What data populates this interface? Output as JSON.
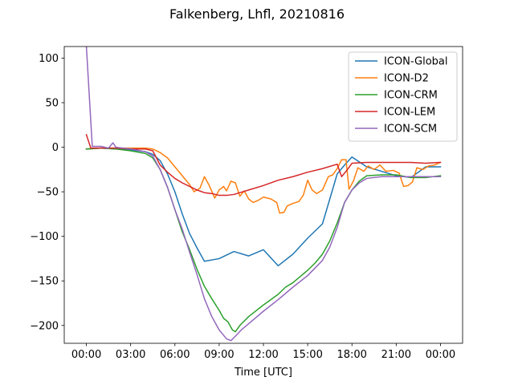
{
  "chart_data": {
    "type": "line",
    "title": "Falkenberg, Lhfl, 20210816",
    "xlabel": "Time [UTC]",
    "ylabel": "",
    "x_unit": "hours",
    "xlim": [
      -1.5,
      25.5
    ],
    "ylim": [
      -220,
      113
    ],
    "xticks": [
      {
        "value": 0,
        "label": "00:00"
      },
      {
        "value": 3,
        "label": "03:00"
      },
      {
        "value": 6,
        "label": "06:00"
      },
      {
        "value": 9,
        "label": "09:00"
      },
      {
        "value": 12,
        "label": "12:00"
      },
      {
        "value": 15,
        "label": "15:00"
      },
      {
        "value": 18,
        "label": "18:00"
      },
      {
        "value": 21,
        "label": "21:00"
      },
      {
        "value": 24,
        "label": "00:00"
      }
    ],
    "yticks": [
      {
        "value": 100,
        "label": "100"
      },
      {
        "value": 50,
        "label": "50"
      },
      {
        "value": 0,
        "label": "0"
      },
      {
        "value": -50,
        "label": "−50"
      },
      {
        "value": -100,
        "label": "−100"
      },
      {
        "value": -150,
        "label": "−150"
      },
      {
        "value": -200,
        "label": "−200"
      }
    ],
    "grid": false,
    "legend": "top-right",
    "series": [
      {
        "name": "ICON-Global",
        "color": "#1f77b4",
        "points": [
          [
            0,
            -2
          ],
          [
            1,
            -1
          ],
          [
            2,
            -2
          ],
          [
            3,
            -3
          ],
          [
            4,
            -5
          ],
          [
            4.5,
            -8
          ],
          [
            5,
            -15
          ],
          [
            5.5,
            -30
          ],
          [
            6,
            -50
          ],
          [
            6.5,
            -75
          ],
          [
            7,
            -97
          ],
          [
            7.5,
            -113
          ],
          [
            8,
            -128
          ],
          [
            9,
            -125
          ],
          [
            10,
            -117
          ],
          [
            11,
            -122
          ],
          [
            12,
            -115
          ],
          [
            13,
            -133
          ],
          [
            14,
            -120
          ],
          [
            15,
            -102
          ],
          [
            16,
            -86
          ],
          [
            16.5,
            -58
          ],
          [
            17,
            -30
          ],
          [
            17.5,
            -20
          ],
          [
            18,
            -11
          ],
          [
            19,
            -22
          ],
          [
            20,
            -27
          ],
          [
            21,
            -32
          ],
          [
            22,
            -34
          ],
          [
            23,
            -22
          ],
          [
            24,
            -22
          ]
        ]
      },
      {
        "name": "ICON-D2",
        "color": "#ff7f0e",
        "points": [
          [
            0,
            -2
          ],
          [
            1,
            -1
          ],
          [
            2,
            -1
          ],
          [
            3,
            -1
          ],
          [
            4,
            -1
          ],
          [
            4.5,
            -2
          ],
          [
            5,
            -6
          ],
          [
            5.5,
            -12
          ],
          [
            6,
            -22
          ],
          [
            6.5,
            -32
          ],
          [
            7,
            -42
          ],
          [
            7.3,
            -50
          ],
          [
            7.7,
            -46
          ],
          [
            8,
            -33
          ],
          [
            8.3,
            -42
          ],
          [
            8.7,
            -57
          ],
          [
            9,
            -48
          ],
          [
            9.3,
            -44
          ],
          [
            9.5,
            -49
          ],
          [
            9.8,
            -38
          ],
          [
            10.1,
            -40
          ],
          [
            10.4,
            -55
          ],
          [
            10.7,
            -49
          ],
          [
            11,
            -58
          ],
          [
            11.3,
            -62
          ],
          [
            11.6,
            -60
          ],
          [
            12,
            -56
          ],
          [
            12.5,
            -58
          ],
          [
            12.9,
            -62
          ],
          [
            13.1,
            -74
          ],
          [
            13.4,
            -73
          ],
          [
            13.6,
            -66
          ],
          [
            14,
            -63
          ],
          [
            14.4,
            -61
          ],
          [
            14.7,
            -54
          ],
          [
            15,
            -37
          ],
          [
            15.3,
            -48
          ],
          [
            15.6,
            -52
          ],
          [
            16,
            -48
          ],
          [
            16.4,
            -33
          ],
          [
            16.7,
            -31
          ],
          [
            17,
            -24
          ],
          [
            17.3,
            -14
          ],
          [
            17.6,
            -14
          ],
          [
            17.8,
            -47
          ],
          [
            18.1,
            -38
          ],
          [
            18.4,
            -23
          ],
          [
            18.8,
            -27
          ],
          [
            19.1,
            -21
          ],
          [
            19.5,
            -25
          ],
          [
            19.9,
            -20
          ],
          [
            20.3,
            -27
          ],
          [
            20.8,
            -26
          ],
          [
            21.2,
            -29
          ],
          [
            21.5,
            -44
          ],
          [
            21.8,
            -43
          ],
          [
            22.1,
            -39
          ],
          [
            22.4,
            -23
          ],
          [
            22.8,
            -25
          ],
          [
            23.2,
            -21
          ],
          [
            23.6,
            -20
          ],
          [
            24,
            -17
          ]
        ]
      },
      {
        "name": "ICON-CRM",
        "color": "#2ca02c",
        "points": [
          [
            0,
            -2
          ],
          [
            1,
            -1
          ],
          [
            2,
            -2
          ],
          [
            3,
            -4
          ],
          [
            4,
            -7
          ],
          [
            4.5,
            -12
          ],
          [
            5,
            -25
          ],
          [
            5.5,
            -45
          ],
          [
            6,
            -70
          ],
          [
            6.5,
            -95
          ],
          [
            7,
            -115
          ],
          [
            7.5,
            -137
          ],
          [
            8,
            -156
          ],
          [
            8.5,
            -170
          ],
          [
            9,
            -183
          ],
          [
            9.3,
            -192
          ],
          [
            9.6,
            -196
          ],
          [
            9.9,
            -205
          ],
          [
            10.1,
            -207
          ],
          [
            10.4,
            -200
          ],
          [
            11,
            -190
          ],
          [
            12,
            -177
          ],
          [
            13,
            -165
          ],
          [
            13.5,
            -157
          ],
          [
            14,
            -152
          ],
          [
            14.5,
            -145
          ],
          [
            15,
            -138
          ],
          [
            15.5,
            -130
          ],
          [
            16,
            -120
          ],
          [
            16.5,
            -105
          ],
          [
            17,
            -85
          ],
          [
            17.5,
            -62
          ],
          [
            18,
            -48
          ],
          [
            18.5,
            -38
          ],
          [
            19,
            -32
          ],
          [
            20,
            -31
          ],
          [
            21,
            -31
          ],
          [
            22,
            -34
          ],
          [
            23,
            -34
          ],
          [
            24,
            -32
          ]
        ]
      },
      {
        "name": "ICON-LEM",
        "color": "#d62728",
        "points": [
          [
            0,
            14
          ],
          [
            0.3,
            -1
          ],
          [
            1,
            -1
          ],
          [
            2,
            -1
          ],
          [
            3,
            -2
          ],
          [
            4,
            -2
          ],
          [
            4.5,
            -4
          ],
          [
            5,
            -20
          ],
          [
            5.5,
            -28
          ],
          [
            6,
            -35
          ],
          [
            6.5,
            -40
          ],
          [
            7,
            -44
          ],
          [
            7.5,
            -48
          ],
          [
            8,
            -51
          ],
          [
            8.5,
            -52
          ],
          [
            9,
            -54
          ],
          [
            9.5,
            -54
          ],
          [
            10,
            -53
          ],
          [
            11,
            -48
          ],
          [
            12,
            -43
          ],
          [
            13,
            -37
          ],
          [
            14,
            -33
          ],
          [
            15,
            -28
          ],
          [
            16,
            -24
          ],
          [
            17,
            -19
          ],
          [
            17.3,
            -33
          ],
          [
            17.7,
            -25
          ],
          [
            18,
            -18
          ],
          [
            19,
            -17
          ],
          [
            20,
            -17
          ],
          [
            21,
            -17
          ],
          [
            22,
            -17
          ],
          [
            23,
            -18
          ],
          [
            24,
            -17
          ]
        ]
      },
      {
        "name": "ICON-SCM",
        "color": "#9467bd",
        "points": [
          [
            0,
            113
          ],
          [
            0.4,
            1
          ],
          [
            1,
            1
          ],
          [
            1.5,
            -1
          ],
          [
            1.8,
            5
          ],
          [
            2,
            0
          ],
          [
            3,
            -2
          ],
          [
            4,
            -5
          ],
          [
            4.5,
            -10
          ],
          [
            5,
            -25
          ],
          [
            5.5,
            -45
          ],
          [
            6,
            -70
          ],
          [
            6.5,
            -92
          ],
          [
            7,
            -118
          ],
          [
            7.5,
            -143
          ],
          [
            8,
            -170
          ],
          [
            8.5,
            -190
          ],
          [
            9,
            -205
          ],
          [
            9.5,
            -215
          ],
          [
            9.8,
            -217
          ],
          [
            10.1,
            -212
          ],
          [
            10.5,
            -205
          ],
          [
            11,
            -198
          ],
          [
            12,
            -184
          ],
          [
            13,
            -171
          ],
          [
            14,
            -157
          ],
          [
            15,
            -144
          ],
          [
            16,
            -127
          ],
          [
            16.5,
            -112
          ],
          [
            17,
            -90
          ],
          [
            17.5,
            -62
          ],
          [
            18,
            -48
          ],
          [
            18.5,
            -40
          ],
          [
            19,
            -35
          ],
          [
            20,
            -33
          ],
          [
            21,
            -33
          ],
          [
            22,
            -33
          ],
          [
            23,
            -33
          ],
          [
            24,
            -33
          ]
        ]
      }
    ]
  }
}
